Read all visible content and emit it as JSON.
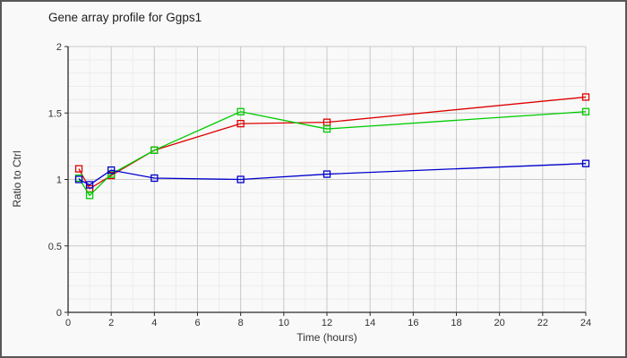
{
  "window": {
    "background_color": "#f9f9f9",
    "border_color": "#58585a"
  },
  "chart_data": {
    "type": "line",
    "title": "Gene array profile for Ggps1",
    "xlabel": "Time (hours)",
    "ylabel": "Ratio to Ctrl",
    "x": [
      0.5,
      1,
      2,
      4,
      8,
      12,
      24
    ],
    "series": [
      {
        "name": "red-series",
        "color": "#dd0000",
        "values": [
          1.08,
          0.93,
          1.03,
          1.22,
          1.42,
          1.43,
          1.62
        ]
      },
      {
        "name": "green-series",
        "color": "#00cc00",
        "values": [
          1.01,
          0.88,
          1.04,
          1.22,
          1.51,
          1.38,
          1.51
        ]
      },
      {
        "name": "blue-series",
        "color": "#0000cc",
        "values": [
          1.0,
          0.96,
          1.07,
          1.01,
          1.0,
          1.04,
          1.12
        ]
      }
    ],
    "xlim": [
      0,
      24
    ],
    "ylim": [
      0,
      2
    ],
    "x_ticks": [
      0,
      2,
      4,
      6,
      8,
      10,
      12,
      14,
      16,
      18,
      20,
      22,
      24
    ],
    "y_ticks": [
      0,
      0.5,
      1,
      1.5,
      2
    ],
    "y_tick_labels": [
      "0",
      "0.5",
      "1",
      "1.5",
      "2"
    ],
    "x_minor_step": 1,
    "y_minor_step": 0.1,
    "grid": true,
    "legend": "none",
    "marker": "square",
    "colors": {
      "major_grid": "#c9c9c9",
      "minor_grid": "#ececec",
      "axis": "#2a2a2a",
      "frame": "#c9c9c9",
      "tick_text": "#333333"
    }
  }
}
